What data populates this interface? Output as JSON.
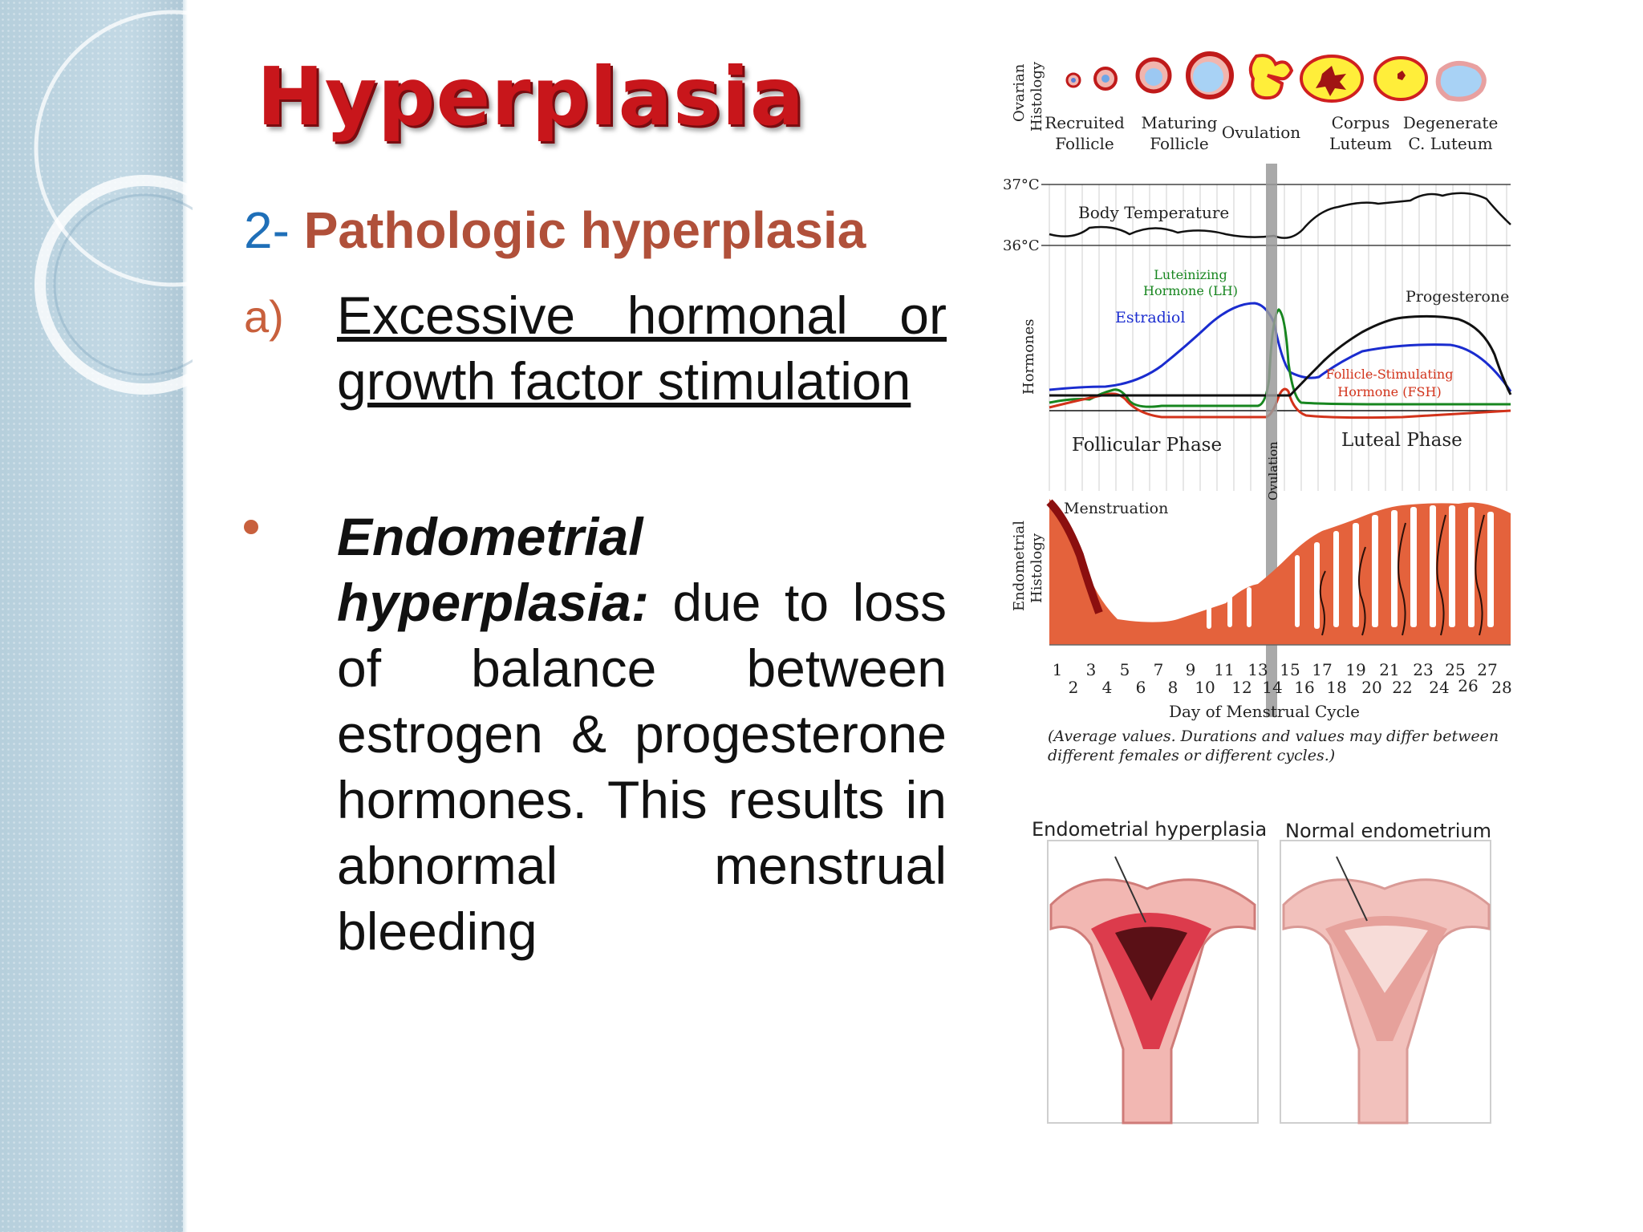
{
  "slide": {
    "title": "Hyperplasia",
    "subtitle_number": "2-",
    "subtitle_label": "Pathologic hyperplasia",
    "item_a": {
      "marker": "a)",
      "line1": "Excessive hormonal or",
      "line2": "growth factor stimulation"
    },
    "bullet": {
      "term": "Endometrial hyperplasia:",
      "text": "due to loss of balance between estrogen & progesterone hormones. This results in abnormal menstrual bleeding"
    }
  },
  "cycle_figure": {
    "ovarian_label_1": "Ovarian",
    "ovarian_label_2": "Histology",
    "stages": [
      {
        "line1": "Recruited",
        "line2": "Follicle"
      },
      {
        "line1": "Maturing",
        "line2": "Follicle"
      },
      {
        "line1": "Ovulation",
        "line2": ""
      },
      {
        "line1": "Corpus",
        "line2": "Luteum"
      },
      {
        "line1": "Degenerate",
        "line2": "C. Luteum"
      }
    ],
    "temp_high": "37°C",
    "temp_low": "36°C",
    "temp_label": "Body Temperature",
    "hormones_label": "Hormones",
    "lh_label_1": "Luteinizing",
    "lh_label_2": "Hormone (LH)",
    "estradiol_label": "Estradiol",
    "progesterone_label": "Progesterone",
    "fsh_label_1": "Follicle-Stimulating",
    "fsh_label_2": "Hormone (FSH)",
    "follicular_phase": "Follicular Phase",
    "luteal_phase": "Luteal Phase",
    "ovulation_vertical": "Ovulation",
    "menstruation": "Menstruation",
    "endometrial_label_1": "Endometrial",
    "endometrial_label_2": "Histology",
    "days_odd": [
      "1",
      "3",
      "5",
      "7",
      "9",
      "11",
      "13",
      "15",
      "17",
      "19",
      "21",
      "23",
      "25",
      "27"
    ],
    "days_even": [
      "2",
      "4",
      "6",
      "8",
      "10",
      "12",
      "14",
      "16",
      "18",
      "20",
      "22",
      "24",
      "26",
      "28"
    ],
    "x_axis_label": "Day of Menstrual Cycle",
    "note_1": "(Average values. Durations and values may differ between",
    "note_2": "different females or different cycles.)",
    "colors": {
      "estradiol": "#1a2ccf",
      "lh": "#17861f",
      "fsh": "#d2321a",
      "progesterone": "#111111",
      "endometrium": "#e4623c"
    }
  },
  "comparison": {
    "left_caption": "Endometrial hyperplasia",
    "right_caption": "Normal endometrium"
  }
}
